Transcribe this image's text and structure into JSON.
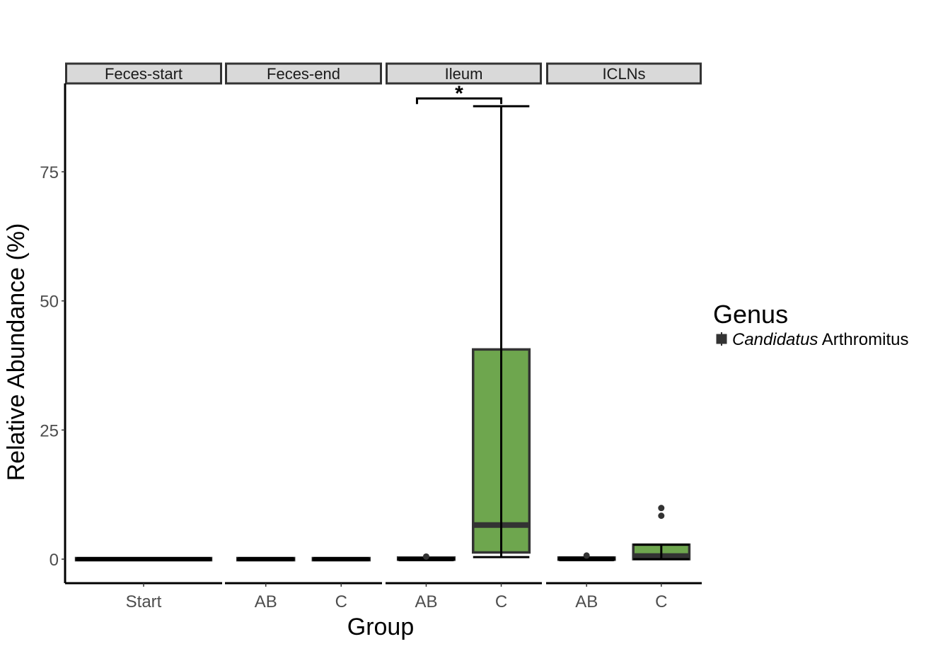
{
  "chart_data": {
    "type": "box",
    "xlabel": "Group",
    "ylabel": "Relative Abundance (%)",
    "ylim": [
      -4.5,
      92
    ],
    "yticks": [
      0,
      25,
      50,
      75
    ],
    "legend": {
      "title": "Genus",
      "entry_italic": "Candidatus",
      "entry_rest": " Arthromitus",
      "placement": "right"
    },
    "colors": {
      "fill": "#6ea64e",
      "outline": "#333333",
      "line": "#000000",
      "strip": "#d9d9d9"
    },
    "facets": [
      {
        "name": "Feces-start",
        "groups": [
          {
            "label": "Start",
            "min": 0,
            "q1": 0,
            "median": 0,
            "q3": 0,
            "max": 0,
            "outliers": []
          }
        ]
      },
      {
        "name": "Feces-end",
        "groups": [
          {
            "label": "AB",
            "min": 0,
            "q1": 0,
            "median": 0,
            "q3": 0,
            "max": 0,
            "outliers": []
          },
          {
            "label": "C",
            "min": 0,
            "q1": 0,
            "median": 0,
            "q3": 0,
            "max": 0,
            "outliers": []
          }
        ]
      },
      {
        "name": "Ileum",
        "groups": [
          {
            "label": "AB",
            "min": 0,
            "q1": 0,
            "median": 0,
            "q3": 0.1,
            "max": 0.2,
            "outliers": [
              0.5
            ]
          },
          {
            "label": "C",
            "min": 0.4,
            "q1": 1.3,
            "median": 6.6,
            "q3": 40.6,
            "max": 87.7,
            "outliers": []
          }
        ],
        "significance": {
          "from": 0,
          "to": 1,
          "y": 89.2,
          "label": "*"
        }
      },
      {
        "name": "ICLNs",
        "groups": [
          {
            "label": "AB",
            "min": 0,
            "q1": 0,
            "median": 0,
            "q3": 0.1,
            "max": 0.3,
            "outliers": [
              0.7
            ]
          },
          {
            "label": "C",
            "min": 0,
            "q1": 0,
            "median": 0.6,
            "q3": 2.8,
            "max": 2.8,
            "outliers": [
              8.4,
              9.9
            ]
          }
        ]
      }
    ]
  }
}
